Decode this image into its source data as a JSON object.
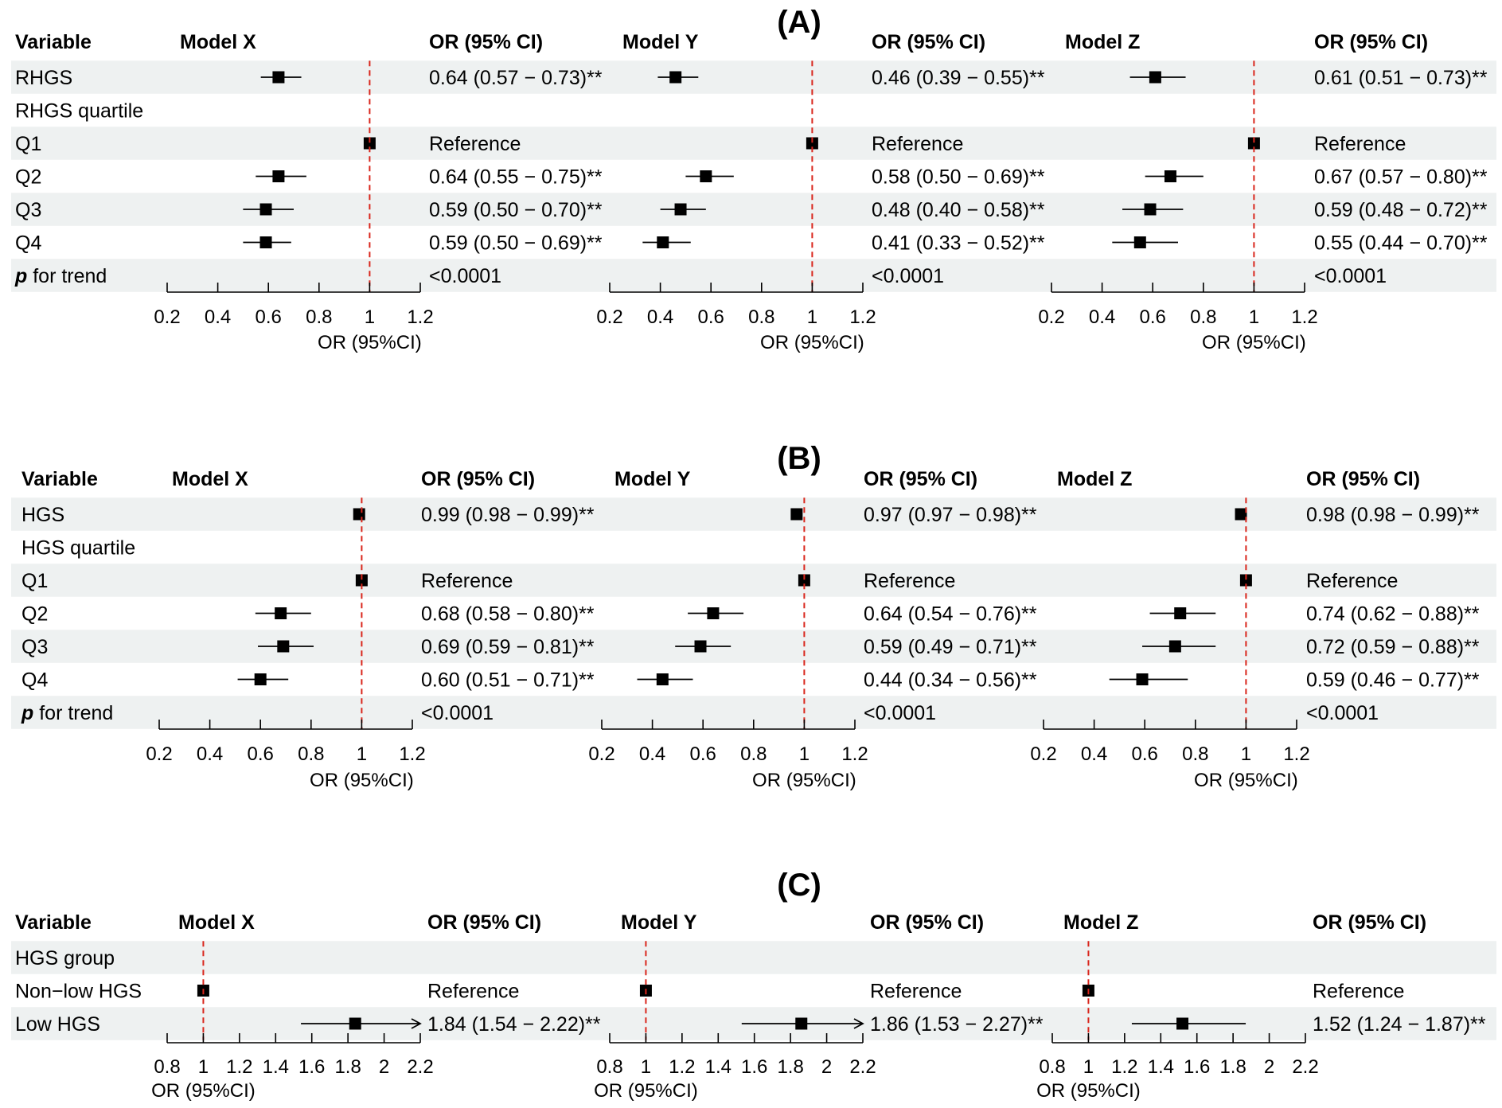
{
  "chart_data": {
    "type": "forest",
    "panels": [
      {
        "label": "(A)",
        "header": {
          "variable": "Variable",
          "or_col": "OR (95% CI)"
        },
        "models": [
          "Model X",
          "Model Y",
          "Model Z"
        ],
        "axis": {
          "min": 0.2,
          "max": 1.2,
          "ticks": [
            "0.2",
            "0.4",
            "0.6",
            "0.8",
            "1",
            "1.2"
          ],
          "label": "OR (95%CI)",
          "ref_line": 1
        },
        "rows": [
          {
            "variable": "RHGS",
            "shaded": true,
            "est": [
              {
                "or": 0.64,
                "lo": 0.57,
                "hi": 0.73,
                "text": "0.64 (0.57 − 0.73)**"
              },
              {
                "or": 0.46,
                "lo": 0.39,
                "hi": 0.55,
                "text": "0.46 (0.39 − 0.55)**"
              },
              {
                "or": 0.61,
                "lo": 0.51,
                "hi": 0.73,
                "text": "0.61 (0.51 − 0.73)**"
              }
            ]
          },
          {
            "variable": "RHGS quartile",
            "shaded": false,
            "est": [
              null,
              null,
              null
            ]
          },
          {
            "variable": "Q1",
            "shaded": true,
            "est": [
              {
                "or": 1,
                "lo": 1,
                "hi": 1,
                "text": "Reference"
              },
              {
                "or": 1,
                "lo": 1,
                "hi": 1,
                "text": "Reference"
              },
              {
                "or": 1,
                "lo": 1,
                "hi": 1,
                "text": "Reference"
              }
            ]
          },
          {
            "variable": "Q2",
            "shaded": false,
            "est": [
              {
                "or": 0.64,
                "lo": 0.55,
                "hi": 0.75,
                "text": "0.64 (0.55 − 0.75)**"
              },
              {
                "or": 0.58,
                "lo": 0.5,
                "hi": 0.69,
                "text": "0.58 (0.50 − 0.69)**"
              },
              {
                "or": 0.67,
                "lo": 0.57,
                "hi": 0.8,
                "text": "0.67 (0.57 − 0.80)**"
              }
            ]
          },
          {
            "variable": "Q3",
            "shaded": true,
            "est": [
              {
                "or": 0.59,
                "lo": 0.5,
                "hi": 0.7,
                "text": "0.59 (0.50 − 0.70)**"
              },
              {
                "or": 0.48,
                "lo": 0.4,
                "hi": 0.58,
                "text": "0.48 (0.40 − 0.58)**"
              },
              {
                "or": 0.59,
                "lo": 0.48,
                "hi": 0.72,
                "text": "0.59 (0.48 − 0.72)**"
              }
            ]
          },
          {
            "variable": "Q4",
            "shaded": false,
            "est": [
              {
                "or": 0.59,
                "lo": 0.5,
                "hi": 0.69,
                "text": "0.59 (0.50 − 0.69)**"
              },
              {
                "or": 0.41,
                "lo": 0.33,
                "hi": 0.52,
                "text": "0.41 (0.33 − 0.52)**"
              },
              {
                "or": 0.55,
                "lo": 0.44,
                "hi": 0.7,
                "text": "0.55 (0.44 − 0.70)**"
              }
            ]
          },
          {
            "variable": "for trend",
            "p_prefix": "p",
            "shaded": true,
            "trend": [
              "<0.0001",
              "<0.0001",
              "<0.0001"
            ]
          }
        ]
      },
      {
        "label": "(B)",
        "header": {
          "variable": "Variable",
          "or_col": "OR (95% CI)"
        },
        "models": [
          "Model X",
          "Model Y",
          "Model Z"
        ],
        "axis": {
          "min": 0.2,
          "max": 1.2,
          "ticks": [
            "0.2",
            "0.4",
            "0.6",
            "0.8",
            "1",
            "1.2"
          ],
          "label": "OR (95%CI)",
          "ref_line": 1
        },
        "rows": [
          {
            "variable": "HGS",
            "shaded": true,
            "est": [
              {
                "or": 0.99,
                "lo": 0.98,
                "hi": 0.99,
                "text": "0.99 (0.98 − 0.99)**"
              },
              {
                "or": 0.97,
                "lo": 0.97,
                "hi": 0.98,
                "text": "0.97 (0.97 − 0.98)**"
              },
              {
                "or": 0.98,
                "lo": 0.98,
                "hi": 0.99,
                "text": "0.98 (0.98 − 0.99)**"
              }
            ]
          },
          {
            "variable": "HGS quartile",
            "shaded": false,
            "est": [
              null,
              null,
              null
            ]
          },
          {
            "variable": "Q1",
            "shaded": true,
            "est": [
              {
                "or": 1,
                "lo": 1,
                "hi": 1,
                "text": "Reference"
              },
              {
                "or": 1,
                "lo": 1,
                "hi": 1,
                "text": "Reference"
              },
              {
                "or": 1,
                "lo": 1,
                "hi": 1,
                "text": "Reference"
              }
            ]
          },
          {
            "variable": "Q2",
            "shaded": false,
            "est": [
              {
                "or": 0.68,
                "lo": 0.58,
                "hi": 0.8,
                "text": "0.68 (0.58 − 0.80)**"
              },
              {
                "or": 0.64,
                "lo": 0.54,
                "hi": 0.76,
                "text": "0.64 (0.54 − 0.76)**"
              },
              {
                "or": 0.74,
                "lo": 0.62,
                "hi": 0.88,
                "text": "0.74 (0.62 − 0.88)**"
              }
            ]
          },
          {
            "variable": "Q3",
            "shaded": true,
            "est": [
              {
                "or": 0.69,
                "lo": 0.59,
                "hi": 0.81,
                "text": "0.69 (0.59 − 0.81)**"
              },
              {
                "or": 0.59,
                "lo": 0.49,
                "hi": 0.71,
                "text": "0.59 (0.49 − 0.71)**"
              },
              {
                "or": 0.72,
                "lo": 0.59,
                "hi": 0.88,
                "text": "0.72 (0.59 − 0.88)**"
              }
            ]
          },
          {
            "variable": "Q4",
            "shaded": false,
            "est": [
              {
                "or": 0.6,
                "lo": 0.51,
                "hi": 0.71,
                "text": "0.60 (0.51 − 0.71)**"
              },
              {
                "or": 0.44,
                "lo": 0.34,
                "hi": 0.56,
                "text": "0.44 (0.34 − 0.56)**"
              },
              {
                "or": 0.59,
                "lo": 0.46,
                "hi": 0.77,
                "text": "0.59 (0.46 − 0.77)**"
              }
            ]
          },
          {
            "variable": "for trend",
            "p_prefix": "p",
            "shaded": true,
            "trend": [
              "<0.0001",
              "<0.0001",
              "<0.0001"
            ]
          }
        ]
      },
      {
        "label": "(C)",
        "header": {
          "variable": "Variable",
          "or_col": "OR (95% CI)"
        },
        "models": [
          "Model X",
          "Model Y",
          "Model Z"
        ],
        "axis": {
          "min": 0.8,
          "max": 2.2,
          "ticks": [
            "0.8",
            "1",
            "1.2",
            "1.4",
            "1.6",
            "1.8",
            "2",
            "2.2"
          ],
          "label": "OR (95%CI)",
          "ref_line": 1
        },
        "rows": [
          {
            "variable": "HGS group",
            "shaded": true,
            "est": [
              null,
              null,
              null
            ]
          },
          {
            "variable": "Non−low HGS",
            "shaded": false,
            "est": [
              {
                "or": 1,
                "lo": 1,
                "hi": 1,
                "text": "Reference"
              },
              {
                "or": 1,
                "lo": 1,
                "hi": 1,
                "text": "Reference"
              },
              {
                "or": 1,
                "lo": 1,
                "hi": 1,
                "text": "Reference"
              }
            ]
          },
          {
            "variable": "Low HGS",
            "shaded": true,
            "est": [
              {
                "or": 1.84,
                "lo": 1.54,
                "hi": 2.22,
                "text": "1.84 (1.54 − 2.22)**",
                "arrow": true
              },
              {
                "or": 1.86,
                "lo": 1.53,
                "hi": 2.27,
                "text": "1.86 (1.53 − 2.27)**",
                "arrow": true
              },
              {
                "or": 1.52,
                "lo": 1.24,
                "hi": 1.87,
                "text": "1.52 (1.24 − 1.87)**"
              }
            ]
          }
        ]
      }
    ]
  }
}
